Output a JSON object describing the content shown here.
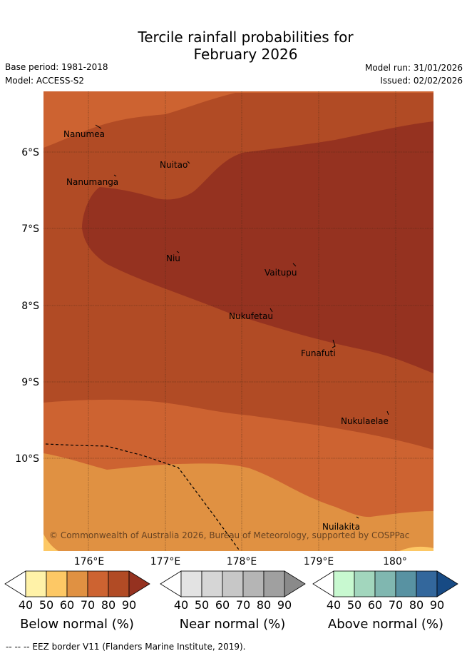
{
  "title": {
    "line1": "Tercile rainfall probabilities for",
    "line2": "February 2026"
  },
  "meta": {
    "base_period": "Base period: 1981-2018",
    "model": "Model: ACCESS-S2",
    "model_run": "Model run: 31/01/2026",
    "issued": "Issued: 02/02/2026"
  },
  "map": {
    "longitude_labels": [
      "176°E",
      "177°E",
      "178°E",
      "179°E",
      "180°"
    ],
    "latitude_labels": [
      "6°S",
      "7°S",
      "8°S",
      "9°S",
      "10°S"
    ],
    "places": [
      "Nanumea",
      "Nuitao",
      "Nanumanga",
      "Niu",
      "Vaitupu",
      "Nukufetau",
      "Funafuti",
      "Nukulaelae",
      "Nuilakita"
    ],
    "copyright": "© Commonwealth of Australia 2026, Bureau of Meteorology, supported by COSPPac"
  },
  "colorbars": [
    {
      "label": "Below normal (%)",
      "ticks": [
        "40",
        "50",
        "60",
        "70",
        "80",
        "90"
      ],
      "colors": [
        "#fff2a8",
        "#fdc865",
        "#e09142",
        "#cd6331",
        "#b14b25",
        "#953220"
      ]
    },
    {
      "label": "Near normal (%)",
      "ticks": [
        "40",
        "50",
        "60",
        "70",
        "80",
        "90"
      ],
      "colors": [
        "#e3e3e3",
        "#d6d6d6",
        "#c7c7c7",
        "#b5b5b5",
        "#a0a0a0",
        "#8a8a8a"
      ]
    },
    {
      "label": "Above normal (%)",
      "ticks": [
        "40",
        "50",
        "60",
        "70",
        "80",
        "90"
      ],
      "colors": [
        "#c8f9d0",
        "#a2d6bd",
        "#80b7b0",
        "#5892a2",
        "#33679c",
        "#174a84"
      ]
    }
  ],
  "footnote": "--  --  -- EEZ border V11 (Flanders Marine Institute, 2019)."
}
